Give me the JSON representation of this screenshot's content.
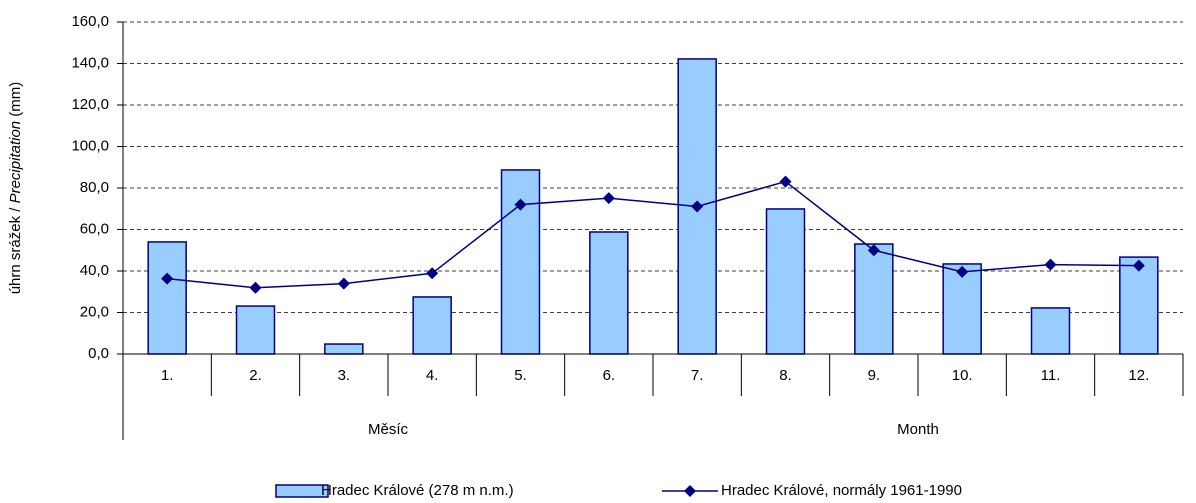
{
  "chart_data": {
    "type": "bar_line",
    "y_label": [
      "úhrn srážek / ",
      "Precipitation",
      "  (mm)"
    ],
    "x_labels": [
      "Měsíc",
      "Month"
    ],
    "categories": [
      "1.",
      "2.",
      "3.",
      "4.",
      "5.",
      "6.",
      "7.",
      "8.",
      "9.",
      "10.",
      "11.",
      "12."
    ],
    "series": [
      {
        "name": "Hradec Králové (278 m n.m.)",
        "type": "bar",
        "color": "#99ccff",
        "edge": "#000080",
        "values": [
          54.0,
          23.1,
          4.8,
          27.5,
          88.7,
          58.8,
          142.2,
          69.9,
          53.0,
          43.4,
          22.2,
          46.7
        ]
      },
      {
        "name": "Hradec Králové, normály 1961-1990",
        "type": "line",
        "color": "#000080",
        "values": [
          36.3,
          31.9,
          33.9,
          38.9,
          72.0,
          75.1,
          71.1,
          83.1,
          50.0,
          39.6,
          43.1,
          42.6
        ]
      }
    ],
    "ylim": [
      0,
      160
    ],
    "yticks": [
      {
        "value": 0,
        "label": "0,0"
      },
      {
        "value": 20,
        "label": "20,0"
      },
      {
        "value": 40,
        "label": "40,0"
      },
      {
        "value": 60,
        "label": "60,0"
      },
      {
        "value": 80,
        "label": "80,0"
      },
      {
        "value": 100,
        "label": "100,0"
      },
      {
        "value": 120,
        "label": "120,0"
      },
      {
        "value": 140,
        "label": "140,0"
      },
      {
        "value": 160,
        "label": "160,0"
      }
    ],
    "grid": true
  }
}
